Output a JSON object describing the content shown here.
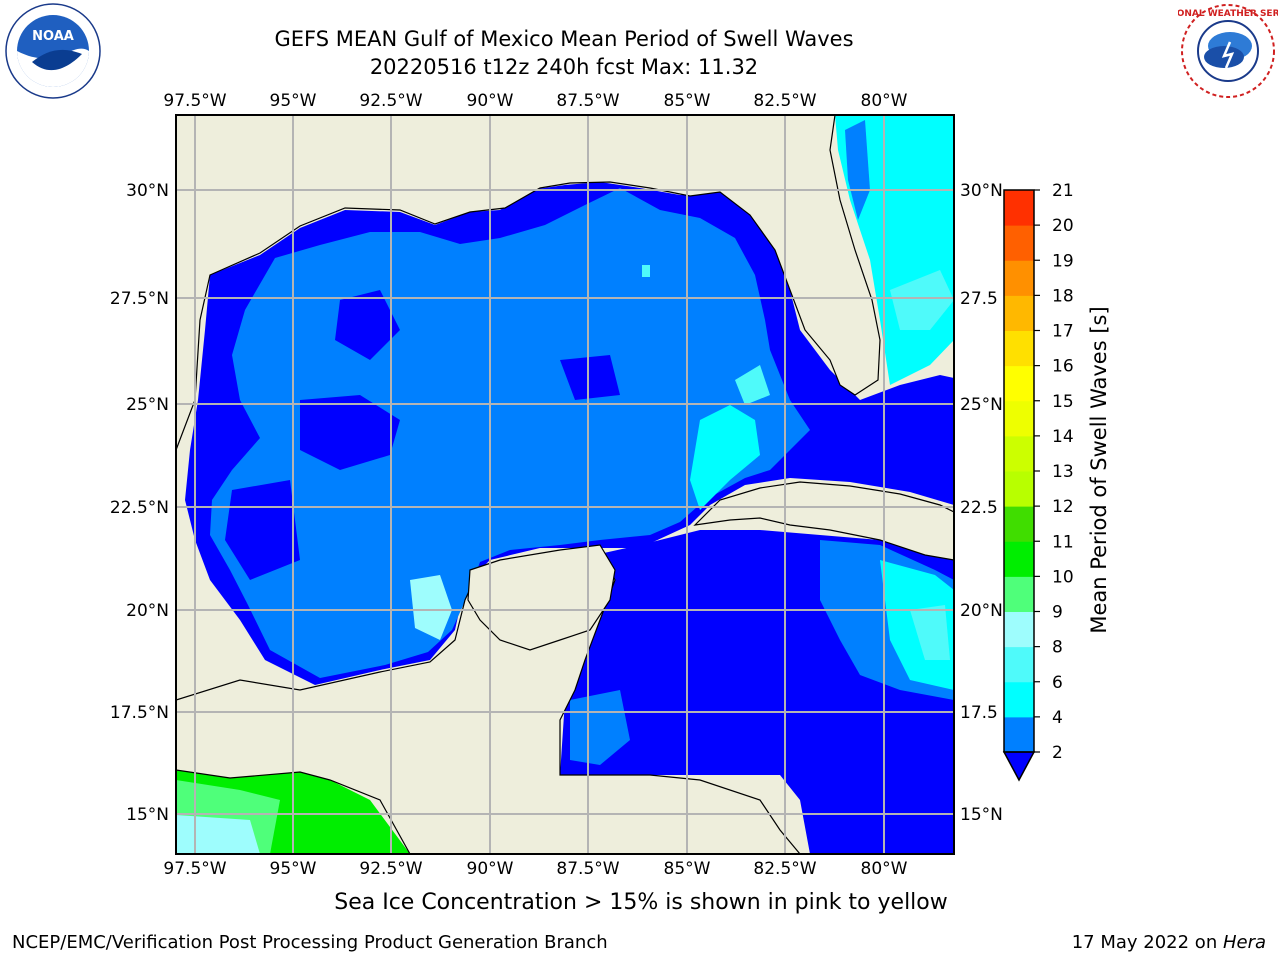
{
  "header": {
    "title_line1": "GEFS MEAN Gulf of Mexico Mean Period of Swell Waves",
    "title_line2": "20220516 t12z 240h fcst   Max: 11.32"
  },
  "logos": {
    "left": "NOAA",
    "left_ring": "NATIONAL OCEANIC AND ATMOSPHERIC ADMINISTRATION · U.S. DEPARTMENT OF COMMERCE",
    "right_ring": "NATIONAL WEATHER SERVICE"
  },
  "map": {
    "lon_labels": [
      "97.5°W",
      "95°W",
      "92.5°W",
      "90°W",
      "87.5°W",
      "85°W",
      "82.5°W",
      "80°W"
    ],
    "lat_labels": [
      "30°N",
      "27.5°N",
      "25°N",
      "22.5°N",
      "20°N",
      "17.5°N",
      "15°N"
    ],
    "lat_labels_right": [
      "30°N",
      "27.5",
      "25°N",
      "22.5",
      "20°N",
      "17.5",
      "15°N"
    ],
    "colors": {
      "land": "#eeeedc",
      "grid": "#b4b4b4",
      "swell_2_4": "#0000ff",
      "swell_4_6": "#0080ff",
      "swell_6_8": "#00ffff",
      "swell_8_9": "#9efdfd",
      "swell_9_10": "#4fff7a",
      "swell_10_11": "#00ee00"
    }
  },
  "colorbar": {
    "label": "Mean Period of Swell Waves [s]",
    "ticks": [
      "2",
      "4",
      "6",
      "8",
      "9",
      "10",
      "11",
      "12",
      "13",
      "14",
      "15",
      "16",
      "17",
      "18",
      "19",
      "20",
      "21"
    ],
    "colors": [
      "#0080ff",
      "#00ffff",
      "#4ffafa",
      "#9efdfd",
      "#4fff7a",
      "#00ee00",
      "#40dd00",
      "#b8ff00",
      "#ccff00",
      "#eeff00",
      "#ffff00",
      "#ffe000",
      "#ffb800",
      "#ff9000",
      "#ff6000",
      "#ff3000",
      "#ff0000"
    ],
    "extend_color": "#0000ff"
  },
  "note": "Sea Ice Concentration > 15% is shown in pink to yellow",
  "footer": {
    "left": "NCEP/EMC/Verification Post Processing Product Generation Branch",
    "date": "17 May 2022 on ",
    "host": "Hera"
  }
}
